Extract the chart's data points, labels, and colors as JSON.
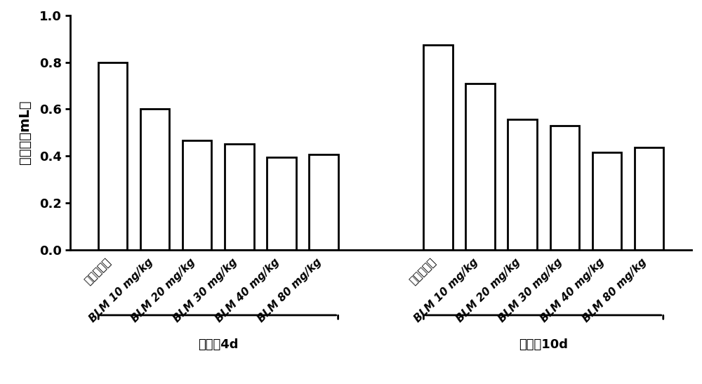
{
  "group1_labels": [
    "正常对照组",
    "BLM 10 mg/kg",
    "BLM 20 mg/kg",
    "BLM 30 mg/kg",
    "BLM 40 mg/kg",
    "BLM 80 mg/kg"
  ],
  "group2_labels": [
    "正常对照组",
    "BLM 10 mg/kg",
    "BLM 20 mg/kg",
    "BLM 30 mg/kg",
    "BLM 40 mg/kg",
    "BLM 80 mg/kg"
  ],
  "group1_values": [
    0.8,
    0.6,
    0.465,
    0.45,
    0.395,
    0.405
  ],
  "group2_values": [
    0.875,
    0.71,
    0.555,
    0.53,
    0.415,
    0.435
  ],
  "group1_title": "造模后4d",
  "group2_title": "造模后10d",
  "ylabel": "潮气量（mL）",
  "ylim": [
    0.0,
    1.0
  ],
  "yticks": [
    0.0,
    0.2,
    0.4,
    0.6,
    0.8,
    1.0
  ],
  "bar_color": "#ffffff",
  "bar_edgecolor": "#000000",
  "bar_linewidth": 2.0,
  "background_color": "#ffffff",
  "figsize": [
    10.0,
    5.47
  ],
  "dpi": 100
}
